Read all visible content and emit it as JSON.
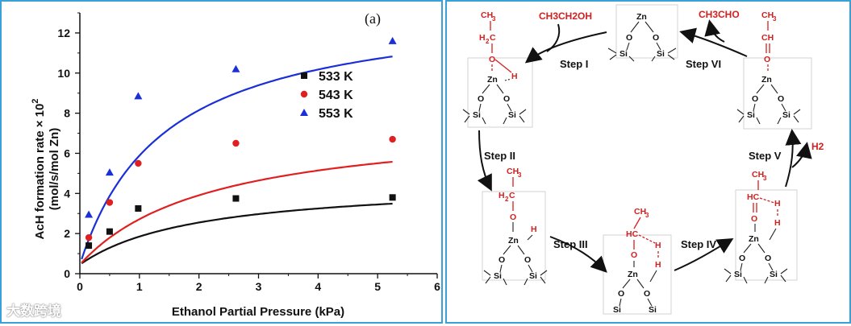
{
  "chart": {
    "panel_label": "(a)",
    "xlabel": "Ethanol Partial Pressure (kPa)",
    "ylabel": "AcH formation rate × 10",
    "ylabel_exp": "2",
    "ylabel_unit": "(mol/s/mol Zn)"
  },
  "chart_data": {
    "type": "scatter",
    "xlim": [
      0,
      6
    ],
    "ylim": [
      0,
      13
    ],
    "x_ticks": [
      0,
      1,
      2,
      3,
      4,
      5,
      6
    ],
    "y_ticks": [
      0,
      2,
      4,
      6,
      8,
      10,
      12
    ],
    "legend_position": "center-right",
    "grid": false,
    "series": [
      {
        "name": "533 K",
        "marker": "square",
        "color": "#111111",
        "x": [
          0.15,
          0.5,
          0.98,
          2.62,
          5.25
        ],
        "y": [
          1.4,
          2.1,
          3.25,
          3.75,
          3.8
        ],
        "fit": {
          "vmax": 4.2,
          "k": 0.5
        }
      },
      {
        "name": "543 K",
        "marker": "circle",
        "color": "#e02020",
        "x": [
          0.15,
          0.5,
          0.98,
          2.62,
          5.25
        ],
        "y": [
          1.8,
          3.55,
          5.5,
          6.5,
          6.7
        ],
        "fit": {
          "vmax": 7.3,
          "k": 0.45
        }
      },
      {
        "name": "553 K",
        "marker": "triangle",
        "color": "#1a2fd8",
        "x": [
          0.15,
          0.5,
          0.98,
          2.62,
          5.25
        ],
        "y": [
          2.95,
          5.05,
          8.85,
          10.2,
          11.6
        ],
        "fit": {
          "vmax": 13.2,
          "k": 0.7
        }
      }
    ]
  },
  "diagram": {
    "steps": [
      "Step I",
      "Step II",
      "Step III",
      "Step IV",
      "Step V",
      "Step VI"
    ],
    "reagent_in": "CH3CH2OH",
    "product_out": "CH3CHO",
    "h2_out": "H2"
  },
  "watermark": "大数跨境"
}
